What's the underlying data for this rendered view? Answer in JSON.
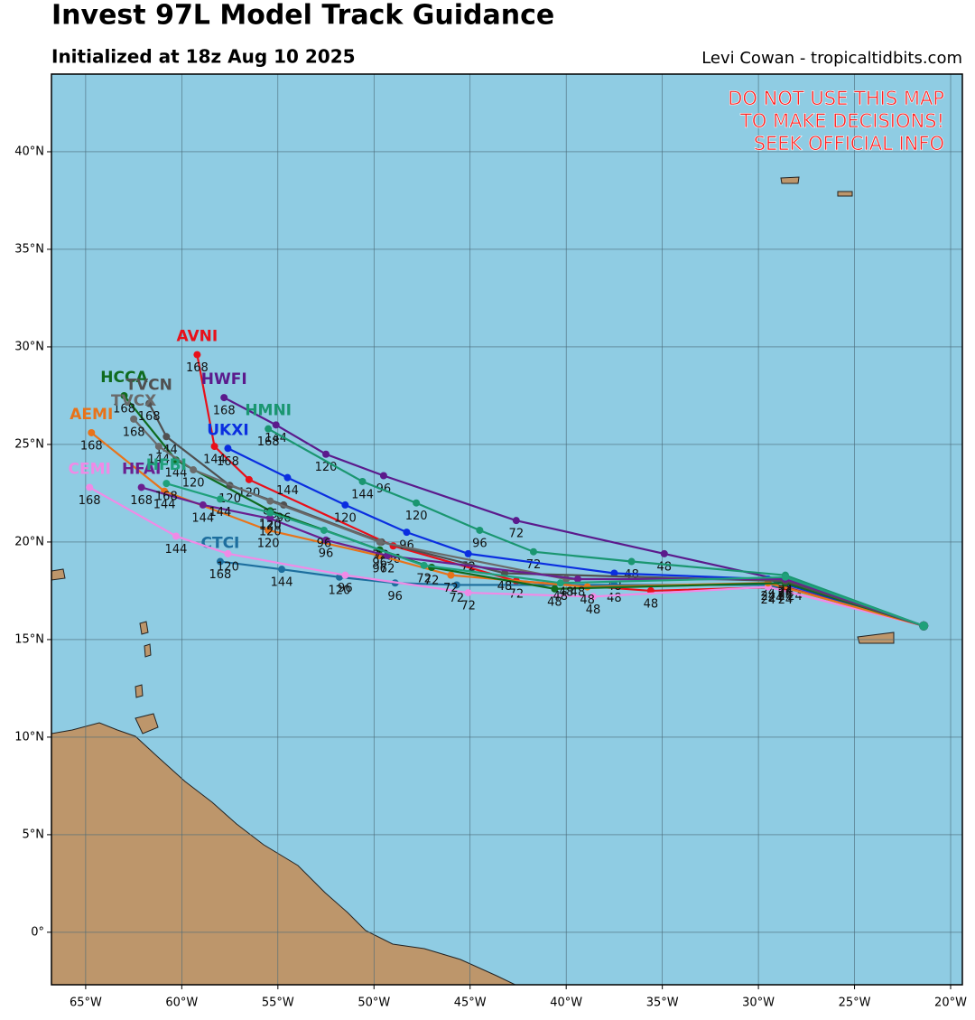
{
  "chart_data": {
    "type": "tracks",
    "title": "Invest 97L Model Track Guidance",
    "subtitle": "Initialized at 18z Aug 10 2025",
    "credit": "Levi Cowan - tropicaltidbits.com",
    "warning": [
      "DO NOT USE THIS MAP",
      "TO MAKE DECISIONS!",
      "SEEK OFFICIAL INFO"
    ],
    "xlim": [
      -66.78,
      -19.39
    ],
    "ylim": [
      -2.69,
      43.98
    ],
    "grid": true,
    "xticks": [
      {
        "value": -65,
        "label": "65°W"
      },
      {
        "value": -60,
        "label": "60°W"
      },
      {
        "value": -55,
        "label": "55°W"
      },
      {
        "value": -50,
        "label": "50°W"
      },
      {
        "value": -45,
        "label": "45°W"
      },
      {
        "value": -40,
        "label": "40°W"
      },
      {
        "value": -35,
        "label": "35°W"
      },
      {
        "value": -30,
        "label": "30°W"
      },
      {
        "value": -25,
        "label": "25°W"
      },
      {
        "value": -20,
        "label": "20°W"
      }
    ],
    "yticks": [
      {
        "value": 0,
        "label": "0°"
      },
      {
        "value": 5,
        "label": "5°N"
      },
      {
        "value": 10,
        "label": "10°N"
      },
      {
        "value": 15,
        "label": "15°N"
      },
      {
        "value": 20,
        "label": "20°N"
      },
      {
        "value": 25,
        "label": "25°N"
      },
      {
        "value": 30,
        "label": "30°N"
      },
      {
        "value": 35,
        "label": "35°N"
      },
      {
        "value": 40,
        "label": "40°N"
      }
    ],
    "series": [
      {
        "name": "AVNI",
        "color": "#e8101a",
        "x": [
          -21.4,
          -28.6,
          -35.6,
          -42.6,
          -49.0,
          -56.5,
          -58.3,
          -59.2
        ],
        "values": [
          15.7,
          17.7,
          17.5,
          18.0,
          19.8,
          23.2,
          24.9,
          29.6
        ],
        "hours": [
          null,
          24,
          48,
          72,
          96,
          120,
          144,
          168
        ]
      },
      {
        "name": "HWFI",
        "color": "#5b1a8c",
        "x": [
          -21.4,
          -28.1,
          -34.9,
          -42.6,
          -49.5,
          -52.5,
          -55.1,
          -57.8
        ],
        "values": [
          15.7,
          17.9,
          19.4,
          21.1,
          23.4,
          24.5,
          26.0,
          27.4
        ],
        "hours": [
          null,
          24,
          48,
          72,
          96,
          120,
          144,
          168
        ]
      },
      {
        "name": "HMNI",
        "color": "#1a9670",
        "x": [
          -21.4,
          -28.6,
          -36.6,
          -41.7,
          -44.5,
          -47.8,
          -50.6,
          -55.5
        ],
        "values": [
          15.7,
          18.3,
          19.0,
          19.5,
          20.6,
          22.0,
          23.1,
          25.8
        ],
        "hours": [
          null,
          24,
          48,
          72,
          96,
          120,
          144,
          168
        ]
      },
      {
        "name": "UKXI",
        "color": "#0a2ee0",
        "x": [
          -21.4,
          -29.5,
          -37.5,
          -45.1,
          -48.3,
          -51.5,
          -54.5,
          -57.6
        ],
        "values": [
          15.7,
          18.1,
          18.4,
          19.4,
          20.5,
          21.9,
          23.3,
          24.8
        ],
        "hours": [
          null,
          24,
          48,
          72,
          96,
          120,
          144,
          168
        ]
      },
      {
        "name": "CTCI",
        "color": "#1d6e9e",
        "x": [
          -21.4,
          -29.1,
          -37.5,
          -45.7,
          -48.9,
          -51.8,
          -54.8,
          -58.0
        ],
        "values": [
          15.7,
          17.8,
          17.8,
          17.8,
          17.9,
          18.2,
          18.6,
          19.0
        ],
        "hours": [
          null,
          24,
          48,
          72,
          96,
          120,
          144,
          168
        ]
      },
      {
        "name": "CEMI",
        "color": "#f08ae6",
        "x": [
          -21.4,
          -29.5,
          -38.6,
          -45.1,
          -51.5,
          -57.6,
          -60.3,
          -64.8
        ],
        "values": [
          15.7,
          17.7,
          17.2,
          17.4,
          18.3,
          19.4,
          20.3,
          22.8
        ],
        "hours": [
          null,
          24,
          48,
          72,
          96,
          120,
          144,
          168
        ]
      },
      {
        "name": "AEMI",
        "color": "#e8731a",
        "x": [
          -21.4,
          -29.5,
          -38.9,
          -46.0,
          -49.7,
          -55.5,
          -60.9,
          -64.7
        ],
        "values": [
          15.7,
          17.9,
          17.7,
          18.3,
          19.3,
          20.6,
          22.6,
          25.6
        ],
        "hours": [
          null,
          24,
          48,
          72,
          96,
          120,
          144,
          168
        ]
      },
      {
        "name": "HCCA",
        "color": "#0f6b1e",
        "x": [
          -21.4,
          -28.6,
          -40.6,
          -47.0,
          -49.7,
          -55.4,
          -60.3,
          -63.0
        ],
        "values": [
          15.7,
          17.9,
          17.6,
          18.7,
          19.6,
          21.6,
          24.2,
          27.5
        ],
        "hours": [
          null,
          24,
          48,
          72,
          96,
          120,
          144,
          168
        ]
      },
      {
        "name": "TVCN",
        "color": "#505050",
        "x": [
          -21.4,
          -28.6,
          -43.2,
          -49.6,
          -54.7,
          -57.5,
          -60.8,
          -61.7
        ],
        "values": [
          15.7,
          18.0,
          18.4,
          20.0,
          21.9,
          22.9,
          25.4,
          27.1
        ],
        "hours": [
          null,
          24,
          48,
          72,
          96,
          120,
          144,
          168
        ]
      },
      {
        "name": "TVCX",
        "color": "#6a6a6a",
        "x": [
          -21.4,
          -28.6,
          -40.0,
          -49.7,
          -55.4,
          -59.4,
          -61.2,
          -62.5
        ],
        "values": [
          15.7,
          18.1,
          18.1,
          20.0,
          22.1,
          23.7,
          24.9,
          26.3
        ],
        "hours": [
          null,
          24,
          48,
          72,
          96,
          120,
          144,
          168
        ]
      },
      {
        "name": "HFAI",
        "color": "#6a1f8f",
        "x": [
          -21.4,
          -28.6,
          -39.4,
          -49.3,
          -52.5,
          -55.4,
          -58.9,
          -62.1
        ],
        "values": [
          15.7,
          18.1,
          18.1,
          19.3,
          20.1,
          21.2,
          21.9,
          22.8
        ],
        "hours": [
          null,
          24,
          48,
          72,
          96,
          120,
          144,
          168
        ]
      },
      {
        "name": "HFBI",
        "color": "#1fa07a",
        "x": [
          -21.4,
          -28.6,
          -40.3,
          -47.4,
          -52.6,
          -55.4,
          -58.0,
          -60.8
        ],
        "values": [
          15.7,
          18.2,
          17.9,
          18.8,
          20.6,
          21.5,
          22.2,
          23.0
        ],
        "hours": [
          null,
          24,
          48,
          72,
          96,
          120,
          144,
          168
        ]
      }
    ]
  }
}
